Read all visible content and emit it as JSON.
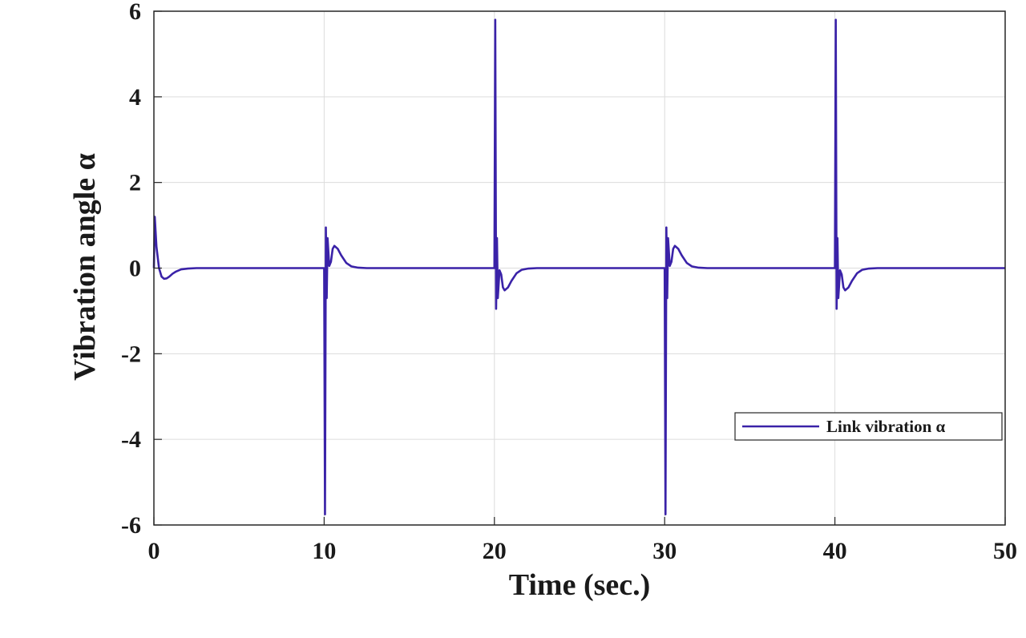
{
  "chart_data": {
    "type": "line",
    "title": "",
    "xlabel": "Time (sec.)",
    "ylabel": "Vibration angle α",
    "xlim": [
      0,
      50
    ],
    "ylim": [
      -6,
      6
    ],
    "xticks": [
      0,
      10,
      20,
      30,
      40,
      50
    ],
    "yticks": [
      -6,
      -4,
      -2,
      0,
      2,
      4,
      6
    ],
    "grid": true,
    "legend_position": "bottom-right",
    "series": [
      {
        "name": "Link vibration α",
        "color": "#3a22a8",
        "x": [
          0,
          0.05,
          0.15,
          0.3,
          0.45,
          0.6,
          0.75,
          0.9,
          1.1,
          1.3,
          1.6,
          2.0,
          2.5,
          3.0,
          10.0,
          10.05,
          10.1,
          10.15,
          10.2,
          10.3,
          10.4,
          10.5,
          10.6,
          10.8,
          11.0,
          11.3,
          11.6,
          12.0,
          12.5,
          13.0,
          20.0,
          20.05,
          20.1,
          20.15,
          20.2,
          20.3,
          20.4,
          20.5,
          20.6,
          20.8,
          21.0,
          21.3,
          21.6,
          22.0,
          22.5,
          23.0,
          30.0,
          30.05,
          30.1,
          30.15,
          30.2,
          30.3,
          30.4,
          30.5,
          30.6,
          30.8,
          31.0,
          31.3,
          31.6,
          32.0,
          32.5,
          33.0,
          40.0,
          40.05,
          40.1,
          40.15,
          40.2,
          40.3,
          40.4,
          40.5,
          40.6,
          40.8,
          41.0,
          41.3,
          41.6,
          42.0,
          42.5,
          43.0,
          50.0
        ],
        "y": [
          0.0,
          1.2,
          0.5,
          0.0,
          -0.2,
          -0.25,
          -0.24,
          -0.2,
          -0.13,
          -0.08,
          -0.03,
          -0.01,
          0.0,
          0.0,
          0.0,
          -5.75,
          0.95,
          -0.7,
          0.7,
          0.05,
          0.15,
          0.45,
          0.52,
          0.45,
          0.3,
          0.12,
          0.04,
          0.01,
          0.0,
          0.0,
          0.0,
          5.8,
          -0.95,
          0.7,
          -0.7,
          -0.05,
          -0.15,
          -0.45,
          -0.52,
          -0.45,
          -0.3,
          -0.12,
          -0.04,
          -0.01,
          0.0,
          0.0,
          0.0,
          -5.75,
          0.95,
          -0.7,
          0.7,
          0.05,
          0.15,
          0.45,
          0.52,
          0.45,
          0.3,
          0.12,
          0.04,
          0.01,
          0.0,
          0.0,
          0.0,
          5.8,
          -0.95,
          0.7,
          -0.7,
          -0.05,
          -0.15,
          -0.45,
          -0.52,
          -0.45,
          -0.3,
          -0.12,
          -0.04,
          -0.01,
          0.0,
          0.0,
          0.0
        ]
      }
    ]
  }
}
